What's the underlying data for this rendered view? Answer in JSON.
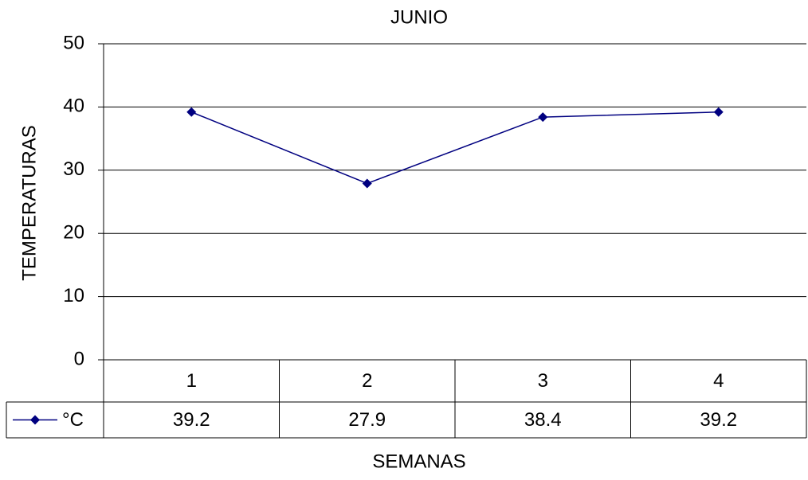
{
  "chart_data": {
    "type": "line",
    "title": "JUNIO",
    "x_label": "SEMANAS",
    "y_label": "TEMPERATURAS",
    "categories": [
      "1",
      "2",
      "3",
      "4"
    ],
    "series": [
      {
        "name": "°C",
        "color": "#000080",
        "values": [
          39.2,
          27.9,
          38.4,
          39.2
        ]
      }
    ],
    "ylim": [
      0,
      50
    ],
    "yticks": [
      0,
      10,
      20,
      30,
      40,
      50
    ],
    "grid": true,
    "data_table": true
  }
}
